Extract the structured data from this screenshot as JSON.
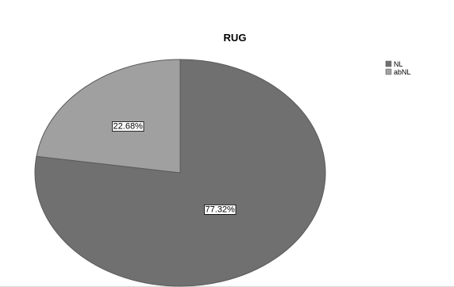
{
  "chart_data": {
    "type": "pie",
    "title": "RUG",
    "slices": [
      {
        "name": "NL",
        "value": 77.32,
        "label": "77.32%",
        "color": "#707070"
      },
      {
        "name": "abNL",
        "value": 22.68,
        "label": "22.68%",
        "color": "#a0a0a0"
      }
    ],
    "start": "top, clockwise",
    "legend": "top-right",
    "slice_border_color": "#5a5a5a"
  }
}
